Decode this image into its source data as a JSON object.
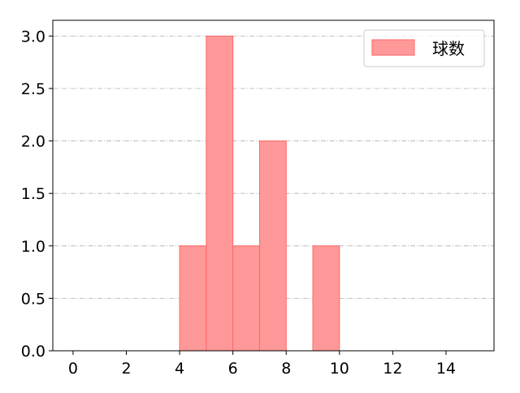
{
  "chart_data": {
    "type": "bar",
    "subtype": "histogram",
    "bins": [
      [
        4,
        5
      ],
      [
        5,
        6
      ],
      [
        6,
        7
      ],
      [
        7,
        8
      ],
      [
        9,
        10
      ]
    ],
    "values": [
      1,
      3,
      1,
      2,
      1
    ],
    "series": [
      {
        "name": "球数",
        "values": [
          1,
          3,
          1,
          2,
          1
        ]
      }
    ],
    "xlim": [
      -0.76,
      15.8
    ],
    "ylim": [
      0,
      3.15
    ],
    "xticks": [
      0,
      2,
      4,
      6,
      8,
      10,
      12,
      14
    ],
    "yticks": [
      "0.0",
      "0.5",
      "1.0",
      "1.5",
      "2.0",
      "2.5",
      "3.0"
    ],
    "grid": "y, dash-dot",
    "legend": {
      "placement": "top-right",
      "entries": [
        "球数"
      ]
    },
    "colors": {
      "bar_fill": "#ff9999",
      "bar_edge": "#ff6666",
      "grid": "#b0b0b0"
    }
  }
}
